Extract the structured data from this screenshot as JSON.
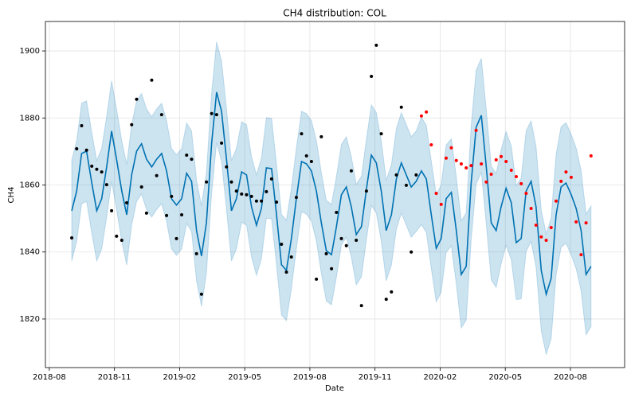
{
  "chart_data": {
    "type": "line",
    "title": "CH4 distribution: COL",
    "x_label": "Date",
    "y_label": "CH4",
    "x": [
      2018.669,
      2018.688,
      2018.707,
      2018.726,
      2018.746,
      2018.765,
      2018.784,
      2018.803,
      2018.822,
      2018.841,
      2018.861,
      2018.88,
      2018.899,
      2018.918,
      2018.937,
      2018.956,
      2018.976,
      2018.995,
      2019.014,
      2019.033,
      2019.052,
      2019.071,
      2019.091,
      2019.11,
      2019.129,
      2019.148,
      2019.167,
      2019.186,
      2019.206,
      2019.225,
      2019.244,
      2019.263,
      2019.282,
      2019.301,
      2019.321,
      2019.34,
      2019.359,
      2019.378,
      2019.397,
      2019.416,
      2019.436,
      2019.455,
      2019.474,
      2019.493,
      2019.512,
      2019.531,
      2019.551,
      2019.57,
      2019.589,
      2019.608,
      2019.627,
      2019.646,
      2019.666,
      2019.685,
      2019.704,
      2019.723,
      2019.742,
      2019.761,
      2019.781,
      2019.8,
      2019.819,
      2019.838,
      2019.857,
      2019.876,
      2019.896,
      2019.915,
      2019.934,
      2019.953,
      2019.972,
      2019.991,
      2020.011,
      2020.03,
      2020.049,
      2020.068,
      2020.087,
      2020.106,
      2020.126,
      2020.145,
      2020.164,
      2020.183,
      2020.202,
      2020.221,
      2020.241,
      2020.26,
      2020.279,
      2020.298,
      2020.317,
      2020.336,
      2020.356,
      2020.375,
      2020.394,
      2020.413,
      2020.432,
      2020.451,
      2020.471,
      2020.49,
      2020.509,
      2020.528,
      2020.547,
      2020.566,
      2020.586,
      2020.605,
      2020.624,
      2020.643,
      2020.662
    ],
    "band": {
      "color": "#0072b2",
      "opacity": 0.2,
      "lower": [
        1837.3,
        1843.2,
        1854.4,
        1855.1,
        1845.6,
        1837.3,
        1840.9,
        1850.4,
        1861.1,
        1852.7,
        1843.2,
        1836.1,
        1848.0,
        1855.1,
        1857.3,
        1852.7,
        1850.4,
        1852.7,
        1854.4,
        1849.2,
        1840.9,
        1839.0,
        1840.9,
        1848.5,
        1846.1,
        1831.4,
        1823.8,
        1833.7,
        1857.5,
        1872.7,
        1867.0,
        1852.7,
        1837.3,
        1840.9,
        1848.9,
        1848.0,
        1838.5,
        1833.0,
        1838.0,
        1850.1,
        1849.9,
        1836.1,
        1821.2,
        1819.5,
        1829.0,
        1840.9,
        1852.0,
        1851.3,
        1849.2,
        1843.2,
        1833.7,
        1825.4,
        1824.2,
        1832.6,
        1842.1,
        1844.4,
        1838.5,
        1830.2,
        1832.6,
        1843.7,
        1853.9,
        1851.6,
        1843.2,
        1831.4,
        1836.1,
        1846.8,
        1851.6,
        1848.0,
        1844.4,
        1846.1,
        1848.2,
        1845.8,
        1835.1,
        1825.1,
        1828.0,
        1839.9,
        1841.8,
        1830.4,
        1817.3,
        1819.7,
        1843.6,
        1860.2,
        1863.8,
        1848.4,
        1831.7,
        1829.4,
        1836.5,
        1842.0,
        1837.7,
        1825.8,
        1826.0,
        1840.2,
        1843.1,
        1835.5,
        1816.5,
        1809.4,
        1814.1,
        1833.1,
        1841.4,
        1842.6,
        1839.1,
        1835.0,
        1828.4,
        1815.3,
        1817.7
      ],
      "upper": [
        1867.3,
        1873.2,
        1884.4,
        1885.1,
        1875.6,
        1867.3,
        1870.9,
        1880.4,
        1891.1,
        1882.7,
        1873.2,
        1866.1,
        1878.0,
        1885.1,
        1887.3,
        1882.7,
        1880.4,
        1882.7,
        1884.4,
        1879.2,
        1870.9,
        1869.0,
        1870.9,
        1878.5,
        1876.1,
        1861.4,
        1853.8,
        1863.7,
        1887.5,
        1902.7,
        1897.0,
        1882.7,
        1867.3,
        1870.9,
        1878.9,
        1878.0,
        1868.5,
        1863.0,
        1868.0,
        1880.1,
        1879.9,
        1866.1,
        1851.2,
        1849.5,
        1859.0,
        1870.9,
        1882.0,
        1881.3,
        1879.2,
        1873.2,
        1863.7,
        1855.4,
        1854.2,
        1862.6,
        1872.1,
        1874.4,
        1868.5,
        1860.2,
        1862.6,
        1873.7,
        1883.9,
        1881.6,
        1873.2,
        1861.4,
        1866.1,
        1876.8,
        1881.6,
        1878.0,
        1874.4,
        1876.1,
        1880.2,
        1877.8,
        1867.1,
        1857.1,
        1860.0,
        1871.9,
        1873.8,
        1862.4,
        1849.3,
        1851.7,
        1877.6,
        1894.2,
        1897.8,
        1882.4,
        1865.7,
        1863.4,
        1870.5,
        1876.0,
        1871.7,
        1859.8,
        1862.0,
        1876.2,
        1879.1,
        1871.5,
        1852.5,
        1845.4,
        1850.1,
        1869.1,
        1877.4,
        1878.6,
        1875.1,
        1871.0,
        1864.4,
        1851.3,
        1853.7
      ]
    },
    "series": [
      {
        "mode": "line",
        "color": "#0072b2",
        "values": [
          1852.3,
          1858.2,
          1869.4,
          1870.1,
          1860.6,
          1852.3,
          1855.9,
          1865.4,
          1876.1,
          1867.7,
          1858.2,
          1851.1,
          1863.0,
          1870.1,
          1872.3,
          1867.7,
          1865.4,
          1867.7,
          1869.4,
          1864.2,
          1855.9,
          1854.0,
          1855.9,
          1863.5,
          1861.1,
          1846.4,
          1838.8,
          1848.7,
          1872.5,
          1887.7,
          1882.0,
          1867.7,
          1852.3,
          1855.9,
          1863.9,
          1863.0,
          1853.5,
          1848.0,
          1853.0,
          1865.1,
          1864.9,
          1851.1,
          1836.2,
          1834.5,
          1844.0,
          1855.9,
          1867.0,
          1866.3,
          1864.2,
          1858.2,
          1848.7,
          1840.4,
          1839.2,
          1847.6,
          1857.1,
          1859.4,
          1853.5,
          1845.2,
          1847.6,
          1858.7,
          1868.9,
          1866.6,
          1858.2,
          1846.4,
          1851.1,
          1861.8,
          1866.6,
          1863.0,
          1859.4,
          1861.1,
          1864.2,
          1861.8,
          1851.1,
          1841.1,
          1844.0,
          1855.9,
          1857.8,
          1846.4,
          1833.3,
          1835.7,
          1860.6,
          1877.2,
          1880.8,
          1865.4,
          1848.7,
          1846.4,
          1853.5,
          1859.0,
          1854.7,
          1842.8,
          1844.0,
          1858.2,
          1861.1,
          1853.5,
          1834.5,
          1827.4,
          1832.1,
          1851.1,
          1859.4,
          1860.6,
          1857.1,
          1853.0,
          1846.4,
          1833.3,
          1835.7
        ]
      },
      {
        "mode": "markers",
        "color": "#000000",
        "values": [
          1844.2,
          1870.8,
          1877.7,
          1870.4,
          1865.6,
          1864.7,
          1863.9,
          1860.1,
          1852.3,
          1844.7,
          1843.5,
          1854.7,
          1878.0,
          1885.6,
          1859.4,
          1851.6,
          1891.3,
          1862.8,
          1881.0,
          1850.9,
          1856.6,
          1844.0,
          1851.1,
          1868.9,
          1867.7,
          1839.5,
          1827.4,
          1860.9,
          1881.3,
          1881.0,
          1872.5,
          1865.4,
          1860.9,
          1858.2,
          1857.3,
          1857.1,
          1856.6,
          1855.2,
          1855.2,
          1858.0,
          1861.8,
          1854.9,
          1842.3,
          1834.0,
          1838.5,
          1856.3,
          1875.3,
          1868.7,
          1867.0,
          1831.9,
          1874.4,
          1839.5,
          1835.0,
          1851.8,
          1844.0,
          1841.9,
          1864.2,
          1843.5,
          1824.0,
          1858.2,
          1892.4,
          1901.7,
          1875.3,
          1825.9,
          1828.1,
          1863.0,
          1883.2,
          1859.9,
          1840.0,
          1863.0,
          null,
          null,
          null,
          null,
          null,
          null,
          null,
          null,
          null,
          null,
          null,
          null,
          null,
          null,
          null,
          null,
          null,
          null,
          null,
          null,
          null,
          null,
          null,
          null,
          null,
          null,
          null,
          null,
          null,
          null,
          null,
          null,
          null,
          null,
          null
        ]
      },
      {
        "mode": "markers",
        "color": "#ff0000",
        "values": [
          null,
          null,
          null,
          null,
          null,
          null,
          null,
          null,
          null,
          null,
          null,
          null,
          null,
          null,
          null,
          null,
          null,
          null,
          null,
          null,
          null,
          null,
          null,
          null,
          null,
          null,
          null,
          null,
          null,
          null,
          null,
          null,
          null,
          null,
          null,
          null,
          null,
          null,
          null,
          null,
          null,
          null,
          null,
          null,
          null,
          null,
          null,
          null,
          null,
          null,
          null,
          null,
          null,
          null,
          null,
          null,
          null,
          null,
          null,
          null,
          null,
          null,
          null,
          null,
          null,
          null,
          null,
          null,
          null,
          null,
          1880.6,
          1881.8,
          1872.0,
          1857.5,
          1854.2,
          1868.0,
          1871.1,
          1867.3,
          1866.3,
          1865.1,
          1865.8,
          1876.3,
          1866.3,
          1860.9,
          1863.2,
          1867.5,
          1868.5,
          1867.0,
          1864.4,
          1862.5,
          1860.4,
          1857.5,
          1853.0,
          1848.0,
          1844.5,
          1843.5,
          1847.3,
          1855.2,
          1861.1,
          1863.9,
          1862.3,
          1849.0,
          1839.2,
          1848.7,
          1868.7
        ]
      }
    ],
    "xlim": [
      2018.568,
      2020.791
    ],
    "ylim": [
      1805.5,
      1908.8
    ],
    "xticks": [
      {
        "value": 2018.583,
        "label": "2018-08"
      },
      {
        "value": 2018.833,
        "label": "2018-11"
      },
      {
        "value": 2019.083,
        "label": "2019-02"
      },
      {
        "value": 2019.333,
        "label": "2019-05"
      },
      {
        "value": 2019.583,
        "label": "2019-08"
      },
      {
        "value": 2019.833,
        "label": "2019-11"
      },
      {
        "value": 2020.083,
        "label": "2020-02"
      },
      {
        "value": 2020.333,
        "label": "2020-05"
      },
      {
        "value": 2020.583,
        "label": "2020-08"
      }
    ],
    "yticks": [
      1820,
      1840,
      1860,
      1880,
      1900
    ],
    "grid": true
  }
}
